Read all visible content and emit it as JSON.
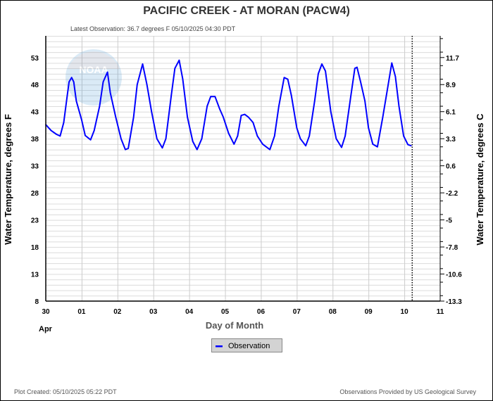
{
  "chart_data": {
    "type": "line",
    "title": "PACIFIC CREEK - AT MORAN  (PACW4)",
    "subtitle": "Latest Observation: 36.7 degrees F 05/10/2025 04:30 PDT",
    "xlabel": "Day of Month",
    "x_month_label": "Apr",
    "ylabel_left": "Water Temperature, degrees F",
    "ylabel_right": "Water Temperature, degrees C",
    "x_unit": "days since Apr 30 00:00",
    "xlim": [
      0,
      11
    ],
    "ylim": [
      8,
      57
    ],
    "x_ticks": [
      {
        "v": 0,
        "label": "30"
      },
      {
        "v": 1,
        "label": "01"
      },
      {
        "v": 2,
        "label": "02"
      },
      {
        "v": 3,
        "label": "03"
      },
      {
        "v": 4,
        "label": "04"
      },
      {
        "v": 5,
        "label": "05"
      },
      {
        "v": 6,
        "label": "06"
      },
      {
        "v": 7,
        "label": "07"
      },
      {
        "v": 8,
        "label": "08"
      },
      {
        "v": 9,
        "label": "09"
      },
      {
        "v": 10,
        "label": "10"
      },
      {
        "v": 11,
        "label": "11"
      }
    ],
    "y_ticks_left": [
      {
        "v": 8,
        "label": "8"
      },
      {
        "v": 13,
        "label": "13"
      },
      {
        "v": 18,
        "label": "18"
      },
      {
        "v": 23,
        "label": "23"
      },
      {
        "v": 28,
        "label": "28"
      },
      {
        "v": 33,
        "label": "33"
      },
      {
        "v": 38,
        "label": "38"
      },
      {
        "v": 43,
        "label": "43"
      },
      {
        "v": 48,
        "label": "48"
      },
      {
        "v": 53,
        "label": "53"
      }
    ],
    "y_ticks_right": [
      {
        "v": 8,
        "label": "-13.3"
      },
      {
        "v": 13,
        "label": "-10.6"
      },
      {
        "v": 18,
        "label": "-7.8"
      },
      {
        "v": 23,
        "label": "-5"
      },
      {
        "v": 28,
        "label": "-2.2"
      },
      {
        "v": 33,
        "label": "0.6"
      },
      {
        "v": 38,
        "label": "3.3"
      },
      {
        "v": 43,
        "label": "6.1"
      },
      {
        "v": 48,
        "label": "8.9"
      },
      {
        "v": 53,
        "label": "11.7"
      }
    ],
    "grid": true,
    "plot_created_marker_x": 10.22,
    "series": [
      {
        "name": "Observation",
        "color": "#0000ff",
        "points": [
          [
            0,
            40.6
          ],
          [
            0.15,
            39.5
          ],
          [
            0.3,
            38.8
          ],
          [
            0.4,
            38.5
          ],
          [
            0.5,
            41
          ],
          [
            0.6,
            46
          ],
          [
            0.65,
            48.5
          ],
          [
            0.72,
            49.3
          ],
          [
            0.78,
            48.5
          ],
          [
            0.85,
            45
          ],
          [
            1.0,
            41.5
          ],
          [
            1.1,
            38.6
          ],
          [
            1.25,
            37.8
          ],
          [
            1.35,
            39.5
          ],
          [
            1.5,
            44
          ],
          [
            1.6,
            48.5
          ],
          [
            1.72,
            50.3
          ],
          [
            1.8,
            46.5
          ],
          [
            1.95,
            42
          ],
          [
            2.1,
            38
          ],
          [
            2.22,
            36
          ],
          [
            2.3,
            36.2
          ],
          [
            2.45,
            42
          ],
          [
            2.55,
            48
          ],
          [
            2.7,
            51.8
          ],
          [
            2.82,
            48
          ],
          [
            2.95,
            43
          ],
          [
            3.1,
            38
          ],
          [
            3.25,
            36.3
          ],
          [
            3.35,
            38
          ],
          [
            3.5,
            46
          ],
          [
            3.6,
            51
          ],
          [
            3.72,
            52.5
          ],
          [
            3.82,
            49
          ],
          [
            3.95,
            42
          ],
          [
            4.1,
            37.5
          ],
          [
            4.22,
            36
          ],
          [
            4.35,
            38
          ],
          [
            4.5,
            44
          ],
          [
            4.6,
            45.8
          ],
          [
            4.72,
            45.8
          ],
          [
            4.85,
            43.5
          ],
          [
            4.95,
            42
          ],
          [
            5.1,
            39
          ],
          [
            5.25,
            37
          ],
          [
            5.35,
            38.5
          ],
          [
            5.45,
            42.3
          ],
          [
            5.55,
            42.5
          ],
          [
            5.65,
            42
          ],
          [
            5.78,
            41
          ],
          [
            5.9,
            38.5
          ],
          [
            6.05,
            37
          ],
          [
            6.25,
            36
          ],
          [
            6.38,
            38.5
          ],
          [
            6.5,
            44
          ],
          [
            6.65,
            49.3
          ],
          [
            6.75,
            49
          ],
          [
            6.85,
            46
          ],
          [
            7.0,
            40
          ],
          [
            7.1,
            38
          ],
          [
            7.25,
            36.7
          ],
          [
            7.35,
            38.5
          ],
          [
            7.5,
            45
          ],
          [
            7.6,
            50
          ],
          [
            7.7,
            51.8
          ],
          [
            7.8,
            50.5
          ],
          [
            7.95,
            43
          ],
          [
            8.1,
            38
          ],
          [
            8.25,
            36.4
          ],
          [
            8.35,
            38.5
          ],
          [
            8.5,
            45.5
          ],
          [
            8.62,
            51
          ],
          [
            8.68,
            51.2
          ],
          [
            8.78,
            48.5
          ],
          [
            8.9,
            45
          ],
          [
            9.0,
            40
          ],
          [
            9.12,
            37
          ],
          [
            9.25,
            36.5
          ],
          [
            9.4,
            42
          ],
          [
            9.55,
            48
          ],
          [
            9.65,
            52
          ],
          [
            9.75,
            49.5
          ],
          [
            9.85,
            44
          ],
          [
            9.98,
            38.5
          ],
          [
            10.1,
            36.9
          ],
          [
            10.19,
            36.7
          ]
        ]
      }
    ],
    "legend": {
      "position": "bottom-center",
      "label": "Observation"
    }
  },
  "footer": {
    "created": "Plot Created: 05/10/2025 05:22 PDT",
    "provider": "Observations Provided by US Geological Survey"
  },
  "watermark": "NOAA"
}
